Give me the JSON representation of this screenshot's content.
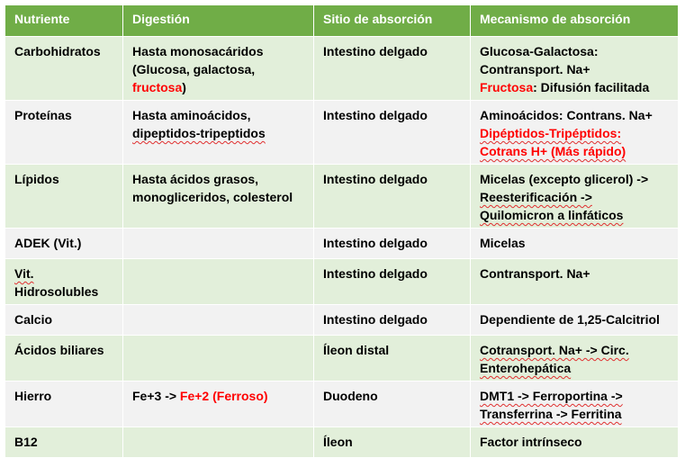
{
  "header": {
    "col1": "Nutriente",
    "col2": "Digestión",
    "col3": "Sitio de absorción",
    "col4": "Mecanismo de absorción"
  },
  "rows": [
    {
      "nutriente": "Carbohidratos",
      "digestion_a": "Hasta monosacáridos",
      "digestion_b": "(Glucosa, galactosa,",
      "digestion_c": "fructosa",
      "digestion_d": ")",
      "sitio": "Intestino delgado",
      "mec_a": "Glucosa-Galactosa:",
      "mec_b": "Contransport. Na+",
      "mec_c": "Fructosa",
      "mec_d": ": Difusión facilitada"
    },
    {
      "nutriente": "Proteínas",
      "digestion_a": "Hasta aminoácidos,",
      "digestion_b": "dipeptidos-tripeptidos",
      "sitio": "Intestino delgado",
      "mec_a": "Aminoácidos: Contrans. Na+",
      "mec_b": "Dipéptidos-Tripéptidos:",
      "mec_c": "Cotrans H+ (Más rápido)"
    },
    {
      "nutriente": "Lípidos",
      "digestion_a": "Hasta ácidos grasos,",
      "digestion_b": "monogliceridos, colesterol",
      "sitio": "Intestino delgado",
      "mec_a": "Micelas (excepto glicerol) ->",
      "mec_b": "Reesterificación ->",
      "mec_c": "Quilomicron a linfáticos"
    },
    {
      "nutriente": "ADEK (Vit.)",
      "digestion": "",
      "sitio": "Intestino delgado",
      "mec": "Micelas"
    },
    {
      "nutriente_a": "Vit.",
      "nutriente_b": "Hidrosolubles",
      "digestion": "",
      "sitio": "Intestino delgado",
      "mec": "Contransport. Na+"
    },
    {
      "nutriente": "Calcio",
      "digestion": "",
      "sitio": "Intestino delgado",
      "mec": "Dependiente de 1,25-Calcitriol"
    },
    {
      "nutriente": "Ácidos biliares",
      "digestion": "",
      "sitio": "Íleon distal",
      "mec_a": "Cotransport. Na+ -> Circ.",
      "mec_b": "Enterohepática"
    },
    {
      "nutriente": "Hierro",
      "digestion_a": "Fe+3 -> ",
      "digestion_b": "Fe+2 (Ferroso)",
      "sitio": "Duodeno",
      "mec_a": "DMT1 -> Ferroportina ->",
      "mec_b": "Transferrina -> Ferritina"
    },
    {
      "nutriente": "B12",
      "digestion": "",
      "sitio": "Íleon",
      "mec": "Factor intrínseco"
    }
  ],
  "colors": {
    "header_bg": "#70ad47",
    "row_odd_bg": "#e2efda",
    "row_even_bg": "#f2f2f2",
    "highlight": "#ff0000"
  }
}
